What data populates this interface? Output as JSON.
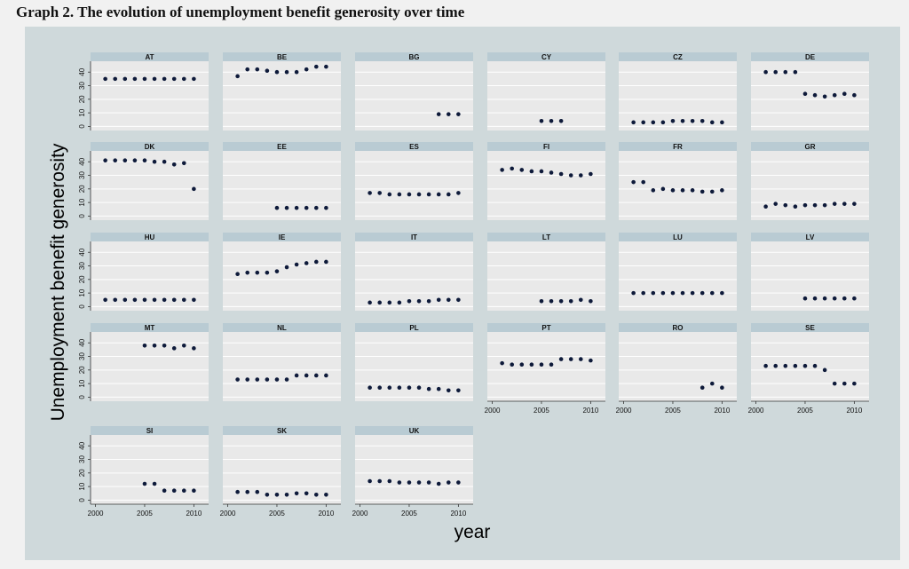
{
  "title": "Graph 2. The evolution of unemployment benefit generosity over time",
  "colors": {
    "outer_background": "#cfd9db",
    "plot_background": "#e9e9e9",
    "strip_background": "#b9cbd3",
    "gridline": "#ffffff",
    "marker": "#0e1a3a"
  },
  "chart_data": {
    "type": "scatter",
    "xlabel": "year",
    "ylabel": "Unemployment benefit generosity",
    "xlim": [
      1999.5,
      2011.5
    ],
    "ylim": [
      -3,
      48
    ],
    "x_ticks": [
      2000,
      2005,
      2010
    ],
    "y_ticks": [
      0,
      10,
      20,
      30,
      40
    ],
    "grid": true,
    "layout": "facet grid, 6 columns",
    "panels": [
      {
        "name": "AT",
        "x": [
          2001,
          2002,
          2003,
          2004,
          2005,
          2006,
          2007,
          2008,
          2009,
          2010
        ],
        "y": [
          35,
          35,
          35,
          35,
          35,
          35,
          35,
          35,
          35,
          35
        ]
      },
      {
        "name": "BE",
        "x": [
          2001,
          2002,
          2003,
          2004,
          2005,
          2006,
          2007,
          2008,
          2009,
          2010
        ],
        "y": [
          37,
          42,
          42,
          41,
          40,
          40,
          40,
          42,
          44,
          44
        ]
      },
      {
        "name": "BG",
        "x": [
          2008,
          2009,
          2010
        ],
        "y": [
          9,
          9,
          9
        ]
      },
      {
        "name": "CY",
        "x": [
          2005,
          2006,
          2007
        ],
        "y": [
          4,
          4,
          4
        ]
      },
      {
        "name": "CZ",
        "x": [
          2001,
          2002,
          2003,
          2004,
          2005,
          2006,
          2007,
          2008,
          2009,
          2010
        ],
        "y": [
          3,
          3,
          3,
          3,
          4,
          4,
          4,
          4,
          3,
          3
        ]
      },
      {
        "name": "DE",
        "x": [
          2001,
          2002,
          2003,
          2004,
          2005,
          2006,
          2007,
          2008,
          2009,
          2010
        ],
        "y": [
          40,
          40,
          40,
          40,
          24,
          23,
          22,
          23,
          24,
          23
        ]
      },
      {
        "name": "DK",
        "x": [
          2001,
          2002,
          2003,
          2004,
          2005,
          2006,
          2007,
          2008,
          2009,
          2010
        ],
        "y": [
          41,
          41,
          41,
          41,
          41,
          40,
          40,
          38,
          39,
          20
        ]
      },
      {
        "name": "EE",
        "x": [
          2005,
          2006,
          2007,
          2008,
          2009,
          2010
        ],
        "y": [
          6,
          6,
          6,
          6,
          6,
          6
        ]
      },
      {
        "name": "ES",
        "x": [
          2001,
          2002,
          2003,
          2004,
          2005,
          2006,
          2007,
          2008,
          2009,
          2010
        ],
        "y": [
          17,
          17,
          16,
          16,
          16,
          16,
          16,
          16,
          16,
          17
        ]
      },
      {
        "name": "FI",
        "x": [
          2001,
          2002,
          2003,
          2004,
          2005,
          2006,
          2007,
          2008,
          2009,
          2010
        ],
        "y": [
          34,
          35,
          34,
          33,
          33,
          32,
          31,
          30,
          30,
          31
        ]
      },
      {
        "name": "FR",
        "x": [
          2001,
          2002,
          2003,
          2004,
          2005,
          2006,
          2007,
          2008,
          2009,
          2010
        ],
        "y": [
          25,
          25,
          19,
          20,
          19,
          19,
          19,
          18,
          18,
          19
        ]
      },
      {
        "name": "GR",
        "x": [
          2001,
          2002,
          2003,
          2004,
          2005,
          2006,
          2007,
          2008,
          2009,
          2010
        ],
        "y": [
          7,
          9,
          8,
          7,
          8,
          8,
          8,
          9,
          9,
          9
        ]
      },
      {
        "name": "HU",
        "x": [
          2001,
          2002,
          2003,
          2004,
          2005,
          2006,
          2007,
          2008,
          2009,
          2010
        ],
        "y": [
          5,
          5,
          5,
          5,
          5,
          5,
          5,
          5,
          5,
          5
        ]
      },
      {
        "name": "IE",
        "x": [
          2001,
          2002,
          2003,
          2004,
          2005,
          2006,
          2007,
          2008,
          2009,
          2010
        ],
        "y": [
          24,
          25,
          25,
          25,
          26,
          29,
          31,
          32,
          33,
          33
        ]
      },
      {
        "name": "IT",
        "x": [
          2001,
          2002,
          2003,
          2004,
          2005,
          2006,
          2007,
          2008,
          2009,
          2010
        ],
        "y": [
          3,
          3,
          3,
          3,
          4,
          4,
          4,
          5,
          5,
          5
        ]
      },
      {
        "name": "LT",
        "x": [
          2005,
          2006,
          2007,
          2008,
          2009,
          2010
        ],
        "y": [
          4,
          4,
          4,
          4,
          5,
          4
        ]
      },
      {
        "name": "LU",
        "x": [
          2001,
          2002,
          2003,
          2004,
          2005,
          2006,
          2007,
          2008,
          2009,
          2010
        ],
        "y": [
          10,
          10,
          10,
          10,
          10,
          10,
          10,
          10,
          10,
          10
        ]
      },
      {
        "name": "LV",
        "x": [
          2005,
          2006,
          2007,
          2008,
          2009,
          2010
        ],
        "y": [
          6,
          6,
          6,
          6,
          6,
          6
        ]
      },
      {
        "name": "MT",
        "x": [
          2005,
          2006,
          2007,
          2008,
          2009,
          2010
        ],
        "y": [
          38,
          38,
          38,
          36,
          38,
          36
        ]
      },
      {
        "name": "NL",
        "x": [
          2001,
          2002,
          2003,
          2004,
          2005,
          2006,
          2007,
          2008,
          2009,
          2010
        ],
        "y": [
          13,
          13,
          13,
          13,
          13,
          13,
          16,
          16,
          16,
          16
        ]
      },
      {
        "name": "PL",
        "x": [
          2001,
          2002,
          2003,
          2004,
          2005,
          2006,
          2007,
          2008,
          2009,
          2010
        ],
        "y": [
          7,
          7,
          7,
          7,
          7,
          7,
          6,
          6,
          5,
          5
        ]
      },
      {
        "name": "PT",
        "x": [
          2001,
          2002,
          2003,
          2004,
          2005,
          2006,
          2007,
          2008,
          2009,
          2010
        ],
        "y": [
          25,
          24,
          24,
          24,
          24,
          24,
          28,
          28,
          28,
          27
        ]
      },
      {
        "name": "RO",
        "x": [
          2008,
          2009,
          2010
        ],
        "y": [
          7,
          10,
          7
        ]
      },
      {
        "name": "SE",
        "x": [
          2001,
          2002,
          2003,
          2004,
          2005,
          2006,
          2007,
          2008,
          2009,
          2010
        ],
        "y": [
          23,
          23,
          23,
          23,
          23,
          23,
          20,
          10,
          10,
          10
        ]
      },
      {
        "name": "SI",
        "x": [
          2005,
          2006,
          2007,
          2008,
          2009,
          2010
        ],
        "y": [
          12,
          12,
          7,
          7,
          7,
          7
        ]
      },
      {
        "name": "SK",
        "x": [
          2001,
          2002,
          2003,
          2004,
          2005,
          2006,
          2007,
          2008,
          2009,
          2010
        ],
        "y": [
          6,
          6,
          6,
          4,
          4,
          4,
          5,
          5,
          4,
          4
        ]
      },
      {
        "name": "UK",
        "x": [
          2001,
          2002,
          2003,
          2004,
          2005,
          2006,
          2007,
          2008,
          2009,
          2010
        ],
        "y": [
          14,
          14,
          14,
          13,
          13,
          13,
          13,
          12,
          13,
          13
        ]
      }
    ]
  }
}
